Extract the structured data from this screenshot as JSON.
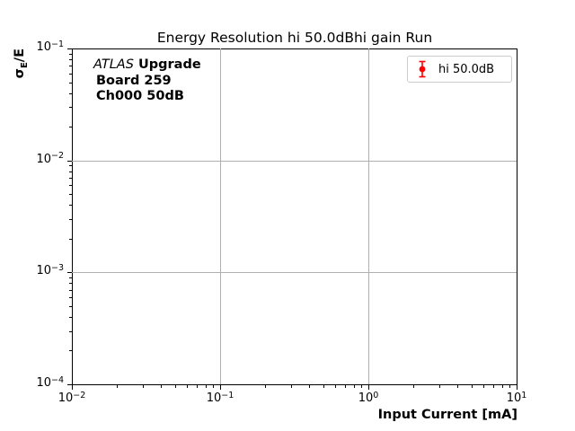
{
  "chart_data": {
    "type": "scatter",
    "title": "Energy Resolution hi 50.0dBhi gain Run",
    "xlabel": "Input Current [mA]",
    "ylabel": "σ_E/E",
    "ylabel_parts": {
      "sigma": "σ",
      "sub": "E",
      "rest": "/E"
    },
    "xscale": "log",
    "yscale": "log",
    "xlim": [
      0.01,
      10
    ],
    "ylim": [
      0.0001,
      0.1
    ],
    "x_tick_exponents": [
      -2,
      -1,
      0,
      1
    ],
    "y_tick_exponents": [
      -1,
      -2,
      -3,
      -4
    ],
    "grid": true,
    "grid_color": "#b0b0b0",
    "axis_color": "#000000",
    "legend": {
      "label": "hi 50.0dB",
      "position": "upper right",
      "border_color": "#cccccc"
    },
    "series": [
      {
        "name": "hi 50.0dB",
        "color": "#ff0000",
        "marker": "circle-with-errorbars",
        "x": [],
        "y": []
      }
    ]
  },
  "annotation": {
    "experiment": "ATLAS",
    "line1_rest": "Upgrade",
    "line2": "Board 259",
    "line3": "Ch000 50dB"
  }
}
